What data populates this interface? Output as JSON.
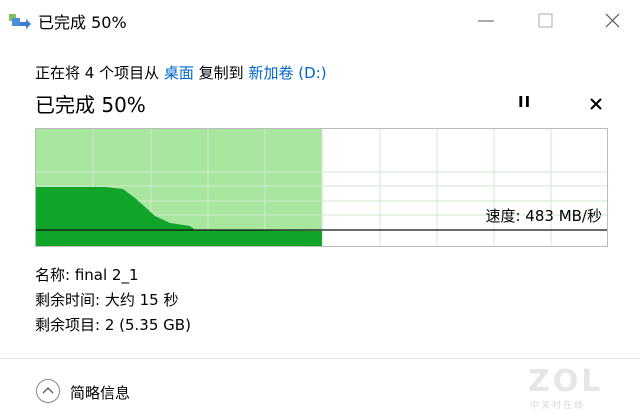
{
  "window": {
    "title": "已完成 50%"
  },
  "description": {
    "prefix": "正在将 4 个项目从",
    "source": "桌面",
    "middle": "复制到",
    "destination": "新加卷 (D:)"
  },
  "progress": {
    "heading": "已完成 50%",
    "speed": "速度: 483 MB/秒"
  },
  "details": {
    "name": "名称: final 2_1",
    "time_remaining": "剩余时间: 大约 15 秒",
    "items_remaining": "剩余项目: 2 (5.35 GB)"
  },
  "footer": {
    "toggle": "简略信息"
  },
  "watermark": {
    "logo": "ZOL",
    "caption": "中关村在线"
  }
}
